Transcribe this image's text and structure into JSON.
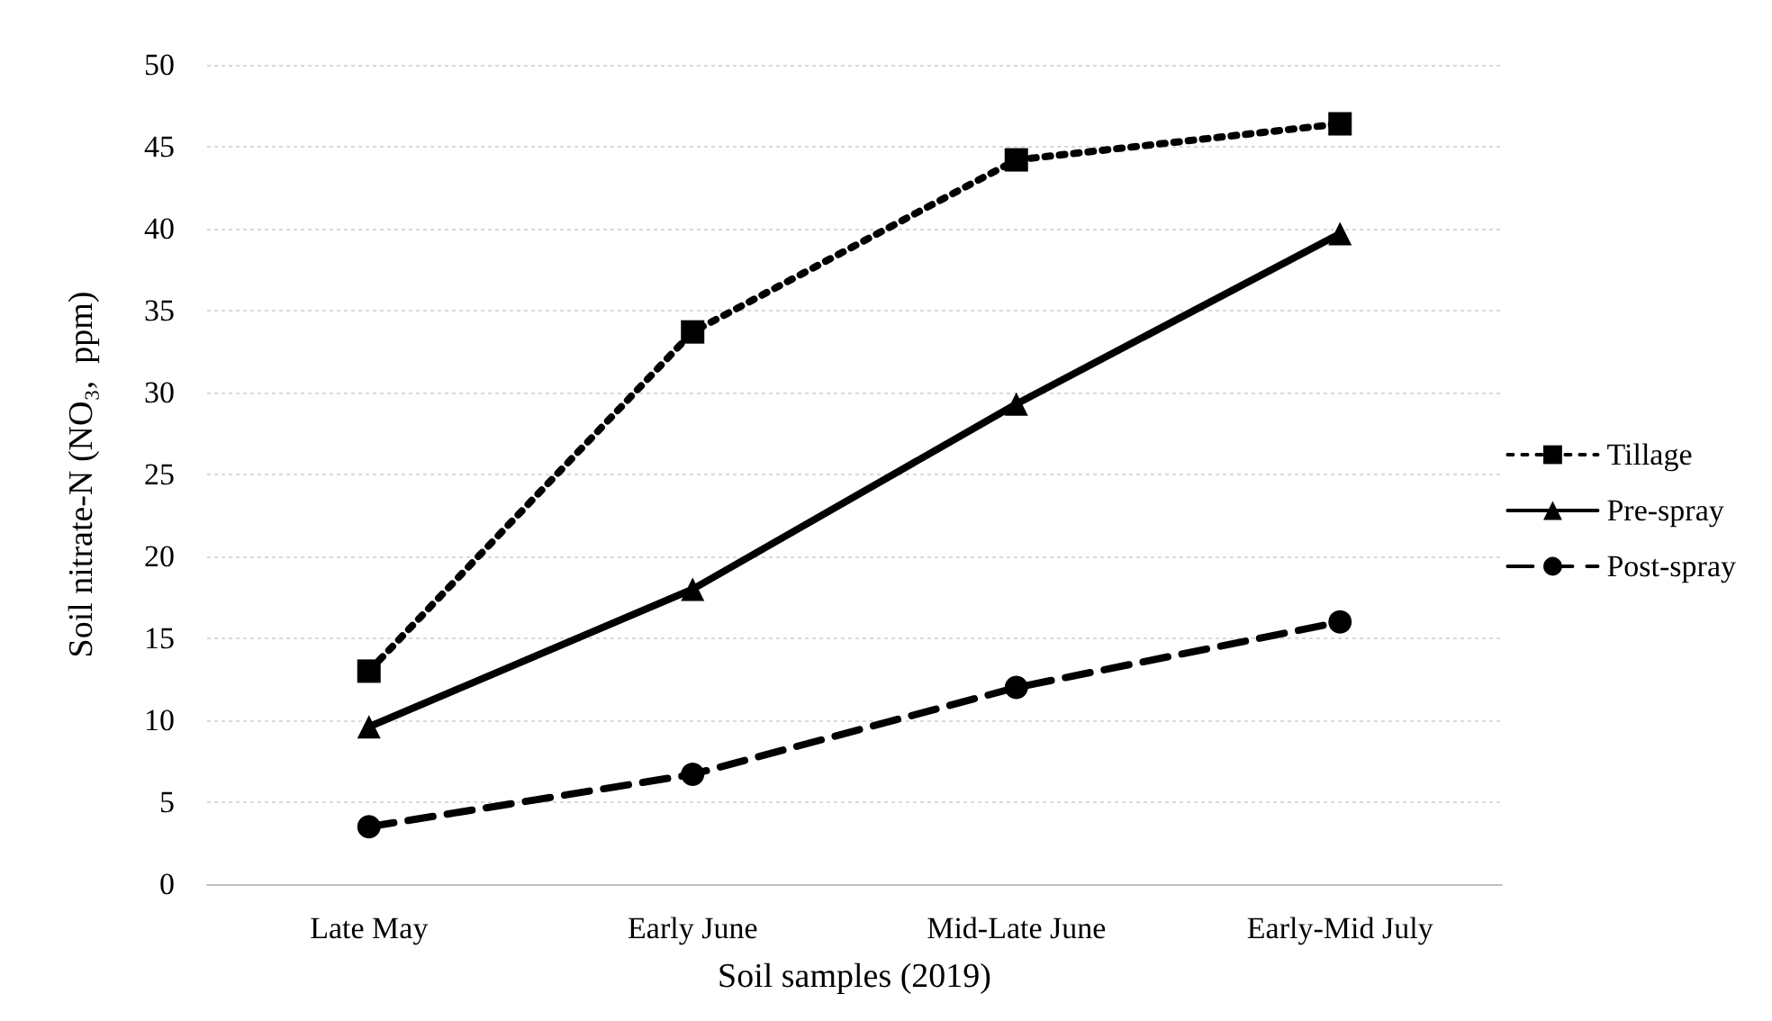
{
  "chart_data": {
    "type": "line",
    "xlabel": "Soil samples (2019)",
    "ylabel": "Soil nitrate-N (NO₃,  ppm)",
    "categories": [
      "Late May",
      "Early June",
      "Mid-Late June",
      "Early-Mid July"
    ],
    "series": [
      {
        "name": "Tillage",
        "color": "#000000",
        "values": [
          13.0,
          33.7,
          44.2,
          46.4
        ],
        "marker": "square",
        "line_style": "dotted"
      },
      {
        "name": "Pre-spray",
        "color": "#000000",
        "values": [
          9.6,
          18.0,
          29.3,
          39.7
        ],
        "marker": "triangle",
        "line_style": "solid"
      },
      {
        "name": "Post-spray",
        "color": "#000000",
        "values": [
          3.5,
          6.7,
          12.0,
          16.0
        ],
        "marker": "circle",
        "line_style": "dashed"
      }
    ],
    "ylim": [
      0,
      50
    ],
    "yticks": [
      0,
      5,
      10,
      15,
      20,
      25,
      30,
      35,
      40,
      45,
      50
    ],
    "grid": "y",
    "legend": "right"
  }
}
